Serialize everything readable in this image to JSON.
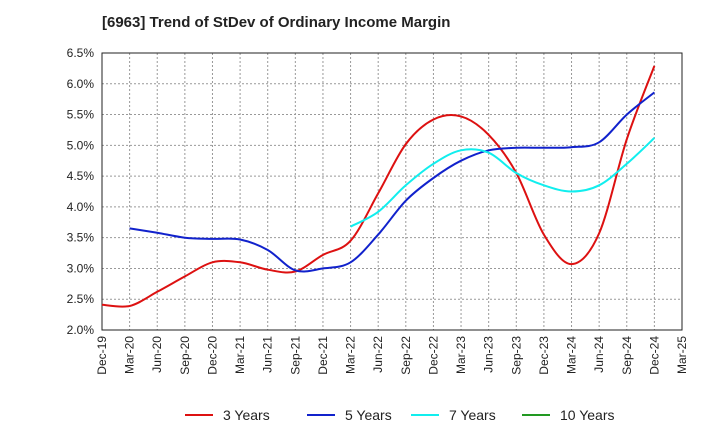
{
  "chart_data": {
    "type": "line",
    "title": "[6963]  Trend of StDev of Ordinary Income Margin",
    "xlabel": "",
    "ylabel": "",
    "x": [
      "Dec-19",
      "Mar-20",
      "Jun-20",
      "Sep-20",
      "Dec-20",
      "Mar-21",
      "Jun-21",
      "Sep-21",
      "Dec-21",
      "Mar-22",
      "Jun-22",
      "Sep-22",
      "Dec-22",
      "Mar-23",
      "Jun-23",
      "Sep-23",
      "Dec-23",
      "Mar-24",
      "Jun-24",
      "Sep-24",
      "Dec-24",
      "Mar-25"
    ],
    "ylim": [
      2.0,
      6.5
    ],
    "yticks": [
      "2.0%",
      "2.5%",
      "3.0%",
      "3.5%",
      "4.0%",
      "4.5%",
      "5.0%",
      "5.5%",
      "6.0%",
      "6.5%"
    ],
    "grid": true,
    "legend_position": "bottom",
    "series": [
      {
        "name": "3 Years",
        "color": "#dd1111",
        "values": [
          2.41,
          2.39,
          2.62,
          2.87,
          3.1,
          3.1,
          2.98,
          2.95,
          3.22,
          3.45,
          4.22,
          5.02,
          5.42,
          5.47,
          5.17,
          4.55,
          3.55,
          3.07,
          3.57,
          5.1,
          6.29,
          null
        ]
      },
      {
        "name": "5 Years",
        "color": "#1122cc",
        "values": [
          null,
          3.65,
          3.58,
          3.5,
          3.48,
          3.47,
          3.3,
          2.97,
          3.0,
          3.1,
          3.55,
          4.1,
          4.47,
          4.75,
          4.92,
          4.96,
          4.96,
          4.97,
          5.05,
          5.5,
          5.86,
          null
        ]
      },
      {
        "name": "7 Years",
        "color": "#11eeee",
        "values": [
          null,
          null,
          null,
          null,
          null,
          null,
          null,
          null,
          null,
          3.68,
          3.92,
          4.35,
          4.7,
          4.92,
          4.88,
          4.55,
          4.35,
          4.25,
          4.35,
          4.7,
          5.12,
          null
        ]
      },
      {
        "name": "10 Years",
        "color": "#229922",
        "values": [
          null,
          null,
          null,
          null,
          null,
          null,
          null,
          null,
          null,
          null,
          null,
          null,
          null,
          null,
          null,
          null,
          null,
          null,
          null,
          null,
          null,
          null
        ]
      }
    ]
  }
}
